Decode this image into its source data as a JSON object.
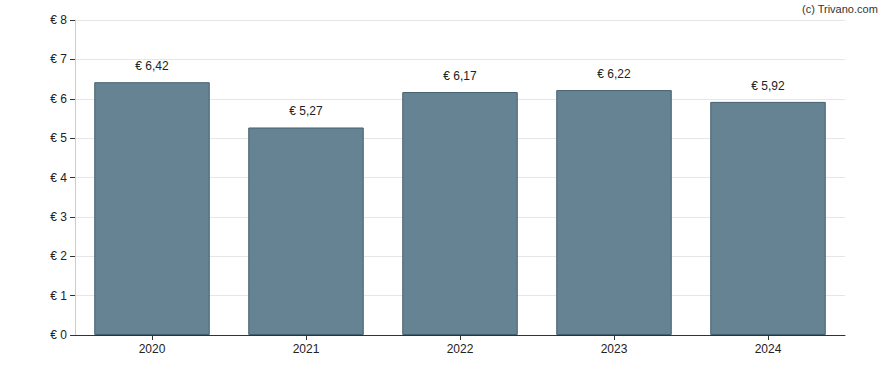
{
  "chart_data": {
    "type": "bar",
    "annotation": "(c) Trivano.com",
    "categories": [
      "2020",
      "2021",
      "2022",
      "2023",
      "2024"
    ],
    "values": [
      6.42,
      5.27,
      6.17,
      6.22,
      5.92
    ],
    "value_labels": [
      "€ 6,42",
      "€ 5,27",
      "€ 6,17",
      "€ 6,22",
      "€ 5,92"
    ],
    "data_labels": true,
    "color": "#668394",
    "ylim": [
      0,
      8
    ],
    "yticks": [
      {
        "value": 0,
        "label": "€ 0"
      },
      {
        "value": 1,
        "label": "€ 1"
      },
      {
        "value": 2,
        "label": "€ 2"
      },
      {
        "value": 3,
        "label": "€ 3"
      },
      {
        "value": 4,
        "label": "€ 4"
      },
      {
        "value": 5,
        "label": "€ 5"
      },
      {
        "value": 6,
        "label": "€ 6"
      },
      {
        "value": 7,
        "label": "€ 7"
      },
      {
        "value": 8,
        "label": "€ 8"
      }
    ],
    "grid": true
  }
}
